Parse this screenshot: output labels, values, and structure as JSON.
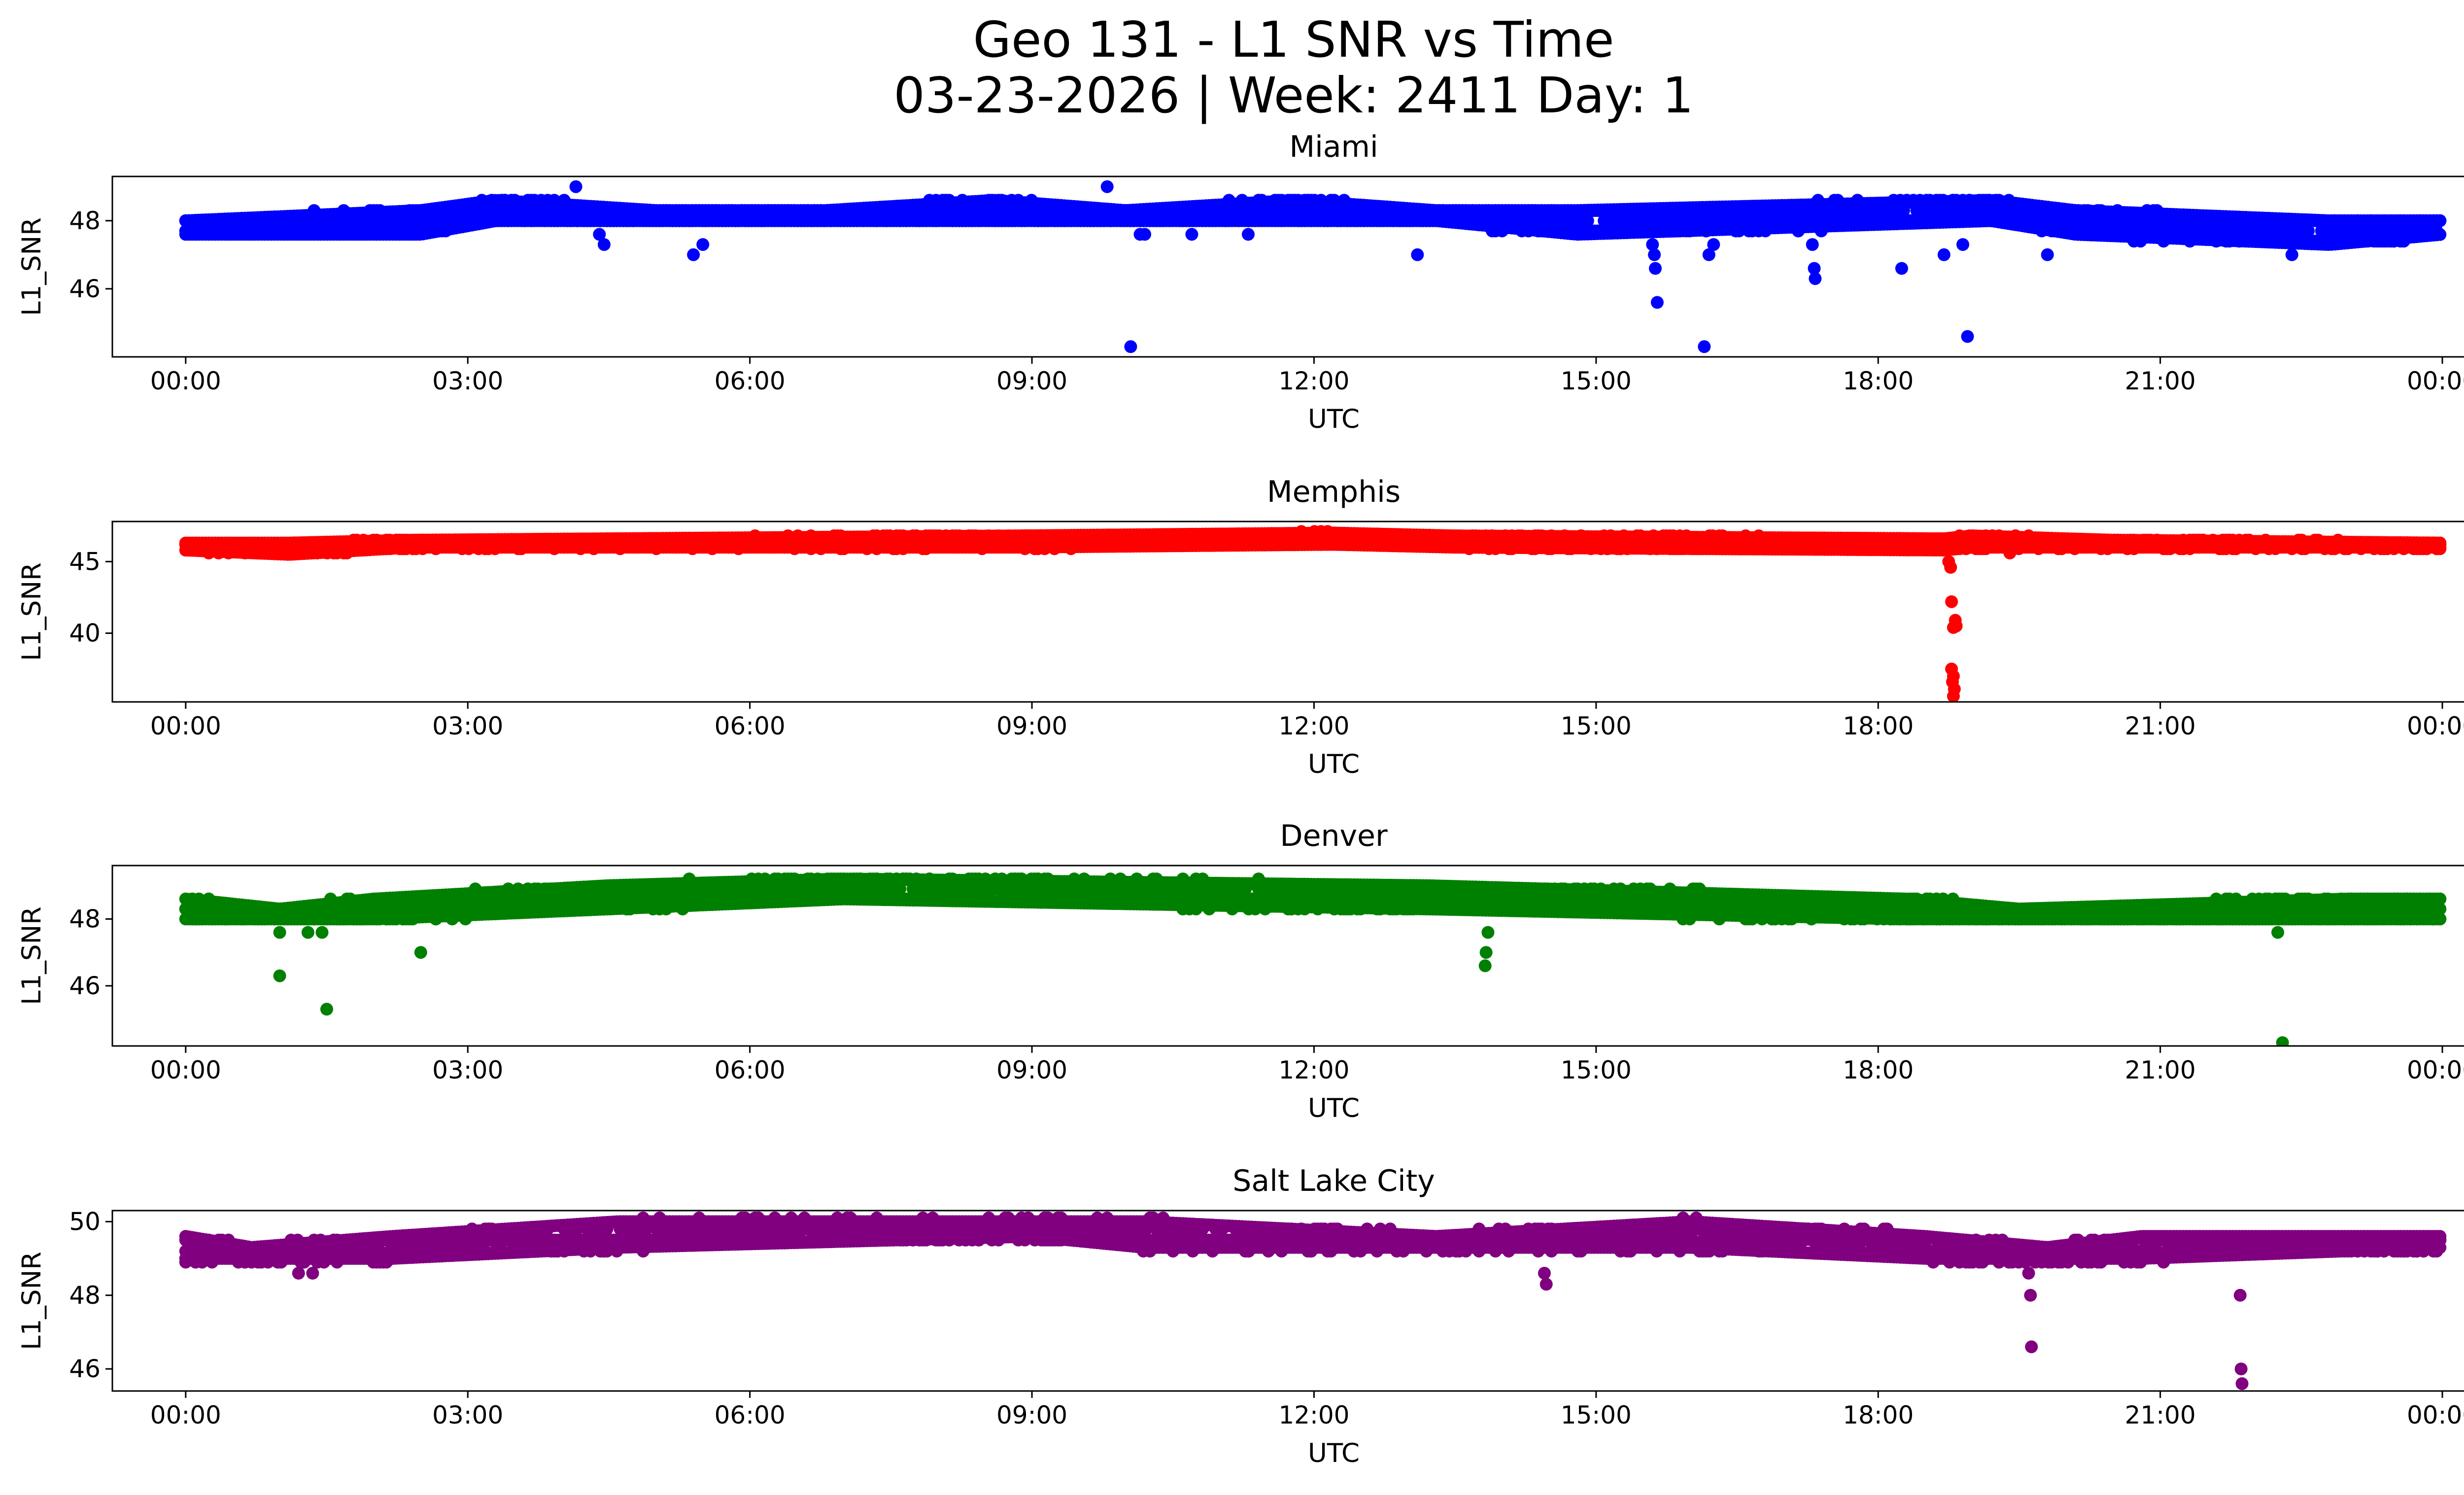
{
  "figure": {
    "title_line1": "Geo 131 - L1 SNR vs Time",
    "title_line2": "03-23-2026 | Week: 2411 Day: 1"
  },
  "chart_data": [
    {
      "type": "scatter",
      "title": "Miami",
      "xlabel": "UTC",
      "ylabel": "L1_SNR",
      "color": "#0000ff",
      "xlim_hours": [
        -0.78,
        25.2
      ],
      "ylim": [
        44.0,
        49.3
      ],
      "xticks": [
        "00:00",
        "03:00",
        "06:00",
        "09:00",
        "12:00",
        "15:00",
        "18:00",
        "21:00",
        "00:00"
      ],
      "yticks": [
        46,
        48
      ],
      "baseline": [
        {
          "t": 0.0,
          "lo": 47.6,
          "hi": 48.0
        },
        {
          "t": 2.5,
          "lo": 47.6,
          "hi": 48.3
        },
        {
          "t": 3.3,
          "lo": 48.0,
          "hi": 48.6
        },
        {
          "t": 5.0,
          "lo": 48.0,
          "hi": 48.3
        },
        {
          "t": 6.8,
          "lo": 48.0,
          "hi": 48.3
        },
        {
          "t": 8.6,
          "lo": 48.0,
          "hi": 48.6
        },
        {
          "t": 10.0,
          "lo": 48.0,
          "hi": 48.3
        },
        {
          "t": 11.8,
          "lo": 48.0,
          "hi": 48.6
        },
        {
          "t": 13.3,
          "lo": 48.0,
          "hi": 48.3
        },
        {
          "t": 14.8,
          "lo": 47.6,
          "hi": 48.3
        },
        {
          "t": 19.2,
          "lo": 48.0,
          "hi": 48.6
        },
        {
          "t": 20.1,
          "lo": 47.6,
          "hi": 48.3
        },
        {
          "t": 22.8,
          "lo": 47.3,
          "hi": 48.0
        },
        {
          "t": 24.0,
          "lo": 47.6,
          "hi": 48.0
        }
      ],
      "outliers": [
        {
          "t": 4.15,
          "v": 49.0
        },
        {
          "t": 4.4,
          "v": 47.6
        },
        {
          "t": 4.45,
          "v": 47.3
        },
        {
          "t": 5.4,
          "v": 47.0
        },
        {
          "t": 5.5,
          "v": 47.3
        },
        {
          "t": 9.8,
          "v": 49.0
        },
        {
          "t": 10.05,
          "v": 44.3
        },
        {
          "t": 10.15,
          "v": 47.6
        },
        {
          "t": 10.2,
          "v": 47.6
        },
        {
          "t": 10.7,
          "v": 47.6
        },
        {
          "t": 11.3,
          "v": 47.6
        },
        {
          "t": 13.1,
          "v": 47.0
        },
        {
          "t": 15.6,
          "v": 47.3
        },
        {
          "t": 15.62,
          "v": 47.0
        },
        {
          "t": 15.63,
          "v": 46.6
        },
        {
          "t": 15.65,
          "v": 45.6
        },
        {
          "t": 16.15,
          "v": 44.3
        },
        {
          "t": 16.2,
          "v": 47.0
        },
        {
          "t": 16.25,
          "v": 47.3
        },
        {
          "t": 17.3,
          "v": 47.3
        },
        {
          "t": 17.32,
          "v": 46.6
        },
        {
          "t": 17.33,
          "v": 46.3
        },
        {
          "t": 18.25,
          "v": 46.6
        },
        {
          "t": 18.7,
          "v": 47.0
        },
        {
          "t": 18.95,
          "v": 44.6
        },
        {
          "t": 18.9,
          "v": 47.3
        },
        {
          "t": 19.8,
          "v": 47.0
        },
        {
          "t": 22.4,
          "v": 47.0
        }
      ]
    },
    {
      "type": "scatter",
      "title": "Memphis",
      "xlabel": "UTC",
      "ylabel": "L1_SNR",
      "color": "#ff0000",
      "xlim_hours": [
        -0.78,
        25.2
      ],
      "ylim": [
        35.2,
        47.8
      ],
      "xticks": [
        "00:00",
        "03:00",
        "06:00",
        "09:00",
        "12:00",
        "15:00",
        "18:00",
        "21:00",
        "00:00"
      ],
      "yticks": [
        40,
        45
      ],
      "baseline": [
        {
          "t": 0.0,
          "lo": 45.8,
          "hi": 46.3
        },
        {
          "t": 1.1,
          "lo": 45.5,
          "hi": 46.3
        },
        {
          "t": 2.4,
          "lo": 46.0,
          "hi": 46.5
        },
        {
          "t": 8.8,
          "lo": 46.0,
          "hi": 46.8
        },
        {
          "t": 12.2,
          "lo": 46.2,
          "hi": 47.0
        },
        {
          "t": 13.5,
          "lo": 46.0,
          "hi": 46.8
        },
        {
          "t": 18.7,
          "lo": 45.8,
          "hi": 46.6
        },
        {
          "t": 19.0,
          "lo": 46.0,
          "hi": 46.8
        },
        {
          "t": 20.5,
          "lo": 46.0,
          "hi": 46.5
        },
        {
          "t": 24.0,
          "lo": 46.0,
          "hi": 46.3
        }
      ],
      "outliers": [
        {
          "t": 18.75,
          "v": 45.0
        },
        {
          "t": 18.77,
          "v": 44.6
        },
        {
          "t": 18.78,
          "v": 42.2
        },
        {
          "t": 18.8,
          "v": 40.4
        },
        {
          "t": 18.82,
          "v": 40.9
        },
        {
          "t": 18.83,
          "v": 40.5
        },
        {
          "t": 18.78,
          "v": 37.5
        },
        {
          "t": 18.8,
          "v": 37.0
        },
        {
          "t": 18.79,
          "v": 36.6
        },
        {
          "t": 18.81,
          "v": 36.1
        },
        {
          "t": 18.8,
          "v": 35.6
        },
        {
          "t": 19.4,
          "v": 45.6
        }
      ]
    },
    {
      "type": "scatter",
      "title": "Denver",
      "xlabel": "UTC",
      "ylabel": "L1_SNR",
      "color": "#008000",
      "xlim_hours": [
        -0.78,
        25.2
      ],
      "ylim": [
        44.2,
        49.6
      ],
      "xticks": [
        "00:00",
        "03:00",
        "06:00",
        "09:00",
        "12:00",
        "15:00",
        "18:00",
        "21:00",
        "00:00"
      ],
      "yticks": [
        46,
        48
      ],
      "baseline": [
        {
          "t": 0.0,
          "lo": 48.0,
          "hi": 48.6
        },
        {
          "t": 1.0,
          "lo": 48.0,
          "hi": 48.3
        },
        {
          "t": 2.0,
          "lo": 48.0,
          "hi": 48.6
        },
        {
          "t": 4.5,
          "lo": 48.3,
          "hi": 49.0
        },
        {
          "t": 7.0,
          "lo": 48.6,
          "hi": 49.2
        },
        {
          "t": 13.2,
          "lo": 48.3,
          "hi": 49.0
        },
        {
          "t": 18.3,
          "lo": 48.0,
          "hi": 48.6
        },
        {
          "t": 19.5,
          "lo": 48.0,
          "hi": 48.3
        },
        {
          "t": 23.0,
          "lo": 48.0,
          "hi": 48.6
        },
        {
          "t": 24.0,
          "lo": 48.0,
          "hi": 48.6
        }
      ],
      "outliers": [
        {
          "t": 1.0,
          "v": 47.6
        },
        {
          "t": 1.0,
          "v": 46.3
        },
        {
          "t": 1.3,
          "v": 47.6
        },
        {
          "t": 1.45,
          "v": 47.6
        },
        {
          "t": 1.5,
          "v": 45.3
        },
        {
          "t": 2.5,
          "v": 47.0
        },
        {
          "t": 13.85,
          "v": 47.6
        },
        {
          "t": 13.83,
          "v": 47.0
        },
        {
          "t": 13.82,
          "v": 46.6
        },
        {
          "t": 22.25,
          "v": 47.6
        },
        {
          "t": 22.3,
          "v": 44.3
        }
      ]
    },
    {
      "type": "scatter",
      "title": "Salt Lake City",
      "xlabel": "UTC",
      "ylabel": "L1_SNR",
      "color": "#800080",
      "xlim_hours": [
        -0.78,
        25.2
      ],
      "ylim": [
        45.4,
        50.3
      ],
      "xticks": [
        "00:00",
        "03:00",
        "06:00",
        "09:00",
        "12:00",
        "15:00",
        "18:00",
        "21:00",
        "00:00"
      ],
      "yticks": [
        46,
        48,
        50
      ],
      "baseline": [
        {
          "t": 0.0,
          "lo": 49.0,
          "hi": 49.6
        },
        {
          "t": 0.7,
          "lo": 49.0,
          "hi": 49.3
        },
        {
          "t": 2.2,
          "lo": 49.0,
          "hi": 49.6
        },
        {
          "t": 4.6,
          "lo": 49.3,
          "hi": 50.0
        },
        {
          "t": 9.0,
          "lo": 49.6,
          "hi": 50.0
        },
        {
          "t": 10.2,
          "lo": 49.3,
          "hi": 50.0
        },
        {
          "t": 13.3,
          "lo": 49.3,
          "hi": 49.6
        },
        {
          "t": 16.0,
          "lo": 49.3,
          "hi": 50.0
        },
        {
          "t": 18.5,
          "lo": 49.0,
          "hi": 49.6
        },
        {
          "t": 19.8,
          "lo": 49.0,
          "hi": 49.3
        },
        {
          "t": 20.8,
          "lo": 49.0,
          "hi": 49.6
        },
        {
          "t": 24.0,
          "lo": 49.3,
          "hi": 49.6
        }
      ],
      "outliers": [
        {
          "t": 1.2,
          "v": 48.6
        },
        {
          "t": 1.35,
          "v": 48.6
        },
        {
          "t": 14.45,
          "v": 48.6
        },
        {
          "t": 14.47,
          "v": 48.3
        },
        {
          "t": 19.6,
          "v": 48.6
        },
        {
          "t": 19.62,
          "v": 48.0
        },
        {
          "t": 19.63,
          "v": 46.6
        },
        {
          "t": 21.85,
          "v": 48.0
        },
        {
          "t": 21.86,
          "v": 46.0
        },
        {
          "t": 21.87,
          "v": 45.6
        }
      ]
    }
  ]
}
